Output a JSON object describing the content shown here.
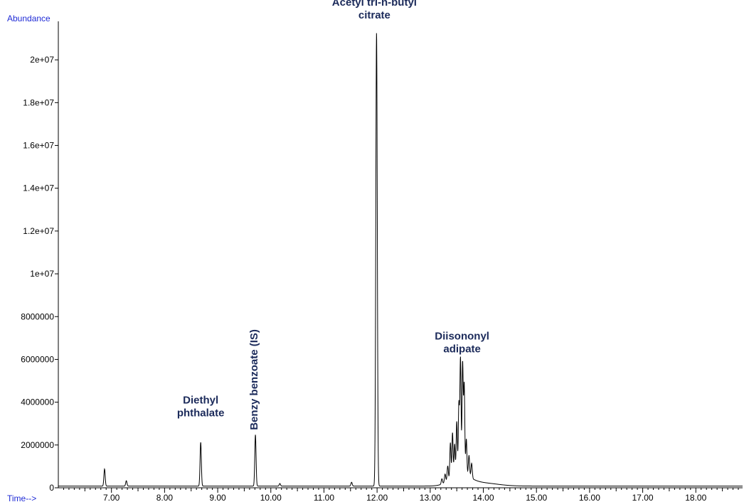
{
  "chart_data": {
    "type": "line",
    "title": "",
    "ylabel": "Abundance",
    "xlabel": "Time-->",
    "xlim": [
      6.0,
      18.88
    ],
    "ylim": [
      0,
      21800000
    ],
    "grid": false,
    "legend": "none",
    "line_color": "#000000",
    "label_color": "#1b2a5a",
    "axis_word_color": "#1f2bd6",
    "y_ticks": [
      {
        "value": 0,
        "label": "0"
      },
      {
        "value": 2000000,
        "label": "2000000"
      },
      {
        "value": 4000000,
        "label": "4000000"
      },
      {
        "value": 6000000,
        "label": "6000000"
      },
      {
        "value": 8000000,
        "label": "8000000"
      },
      {
        "value": 10000000,
        "label": "1e+07"
      },
      {
        "value": 12000000,
        "label": "1.2e+07"
      },
      {
        "value": 14000000,
        "label": "1.4e+07"
      },
      {
        "value": 16000000,
        "label": "1.6e+07"
      },
      {
        "value": 18000000,
        "label": "1.8e+07"
      },
      {
        "value": 20000000,
        "label": "2e+07"
      }
    ],
    "x_ticks": [
      {
        "value": 7,
        "label": "7.00"
      },
      {
        "value": 8,
        "label": "8.00"
      },
      {
        "value": 9,
        "label": "9.00"
      },
      {
        "value": 10,
        "label": "10.00"
      },
      {
        "value": 11,
        "label": "11.00"
      },
      {
        "value": 12,
        "label": "12.00"
      },
      {
        "value": 13,
        "label": "13.00"
      },
      {
        "value": 14,
        "label": "14.00"
      },
      {
        "value": 15,
        "label": "15.00"
      },
      {
        "value": 16,
        "label": "16.00"
      },
      {
        "value": 17,
        "label": "17.00"
      },
      {
        "value": 18,
        "label": "18.00"
      }
    ],
    "baseline": 80000,
    "peaks": [
      {
        "x": 6.87,
        "y": 800000,
        "w": 0.012
      },
      {
        "x": 7.28,
        "y": 250000,
        "w": 0.012
      },
      {
        "x": 8.68,
        "y": 2050000,
        "w": 0.012
      },
      {
        "x": 9.71,
        "y": 2400000,
        "w": 0.012
      },
      {
        "x": 10.17,
        "y": 120000,
        "w": 0.012
      },
      {
        "x": 11.52,
        "y": 180000,
        "w": 0.012
      },
      {
        "x": 11.99,
        "y": 21200000,
        "w": 0.014
      },
      {
        "x": 13.22,
        "y": 250000,
        "w": 0.012
      },
      {
        "x": 13.28,
        "y": 400000,
        "w": 0.012
      },
      {
        "x": 13.33,
        "y": 700000,
        "w": 0.012
      },
      {
        "x": 13.38,
        "y": 1700000,
        "w": 0.011
      },
      {
        "x": 13.42,
        "y": 2100000,
        "w": 0.011
      },
      {
        "x": 13.46,
        "y": 1500000,
        "w": 0.011
      },
      {
        "x": 13.5,
        "y": 2500000,
        "w": 0.011
      },
      {
        "x": 13.54,
        "y": 3300000,
        "w": 0.011
      },
      {
        "x": 13.57,
        "y": 5400000,
        "w": 0.011
      },
      {
        "x": 13.61,
        "y": 5200000,
        "w": 0.011
      },
      {
        "x": 13.64,
        "y": 4200000,
        "w": 0.011
      },
      {
        "x": 13.68,
        "y": 1700000,
        "w": 0.011
      },
      {
        "x": 13.73,
        "y": 1000000,
        "w": 0.012
      },
      {
        "x": 13.78,
        "y": 700000,
        "w": 0.012
      }
    ],
    "humps": [
      {
        "x": 13.56,
        "y": 500000,
        "w": 0.18
      },
      {
        "x": 13.95,
        "y": 150000,
        "w": 0.3
      }
    ],
    "annotations": [
      {
        "lines": [
          "Acetyl tri-n-butyl",
          "citrate"
        ],
        "x": 11.95,
        "y": 21800000,
        "rotate": false
      },
      {
        "lines": [
          "Diisononyl",
          "adipate"
        ],
        "x": 13.6,
        "y": 6200000,
        "rotate": false
      },
      {
        "lines": [
          "Diethyl",
          "phthalate"
        ],
        "x": 8.68,
        "y": 3200000,
        "rotate": false
      },
      {
        "lines": [
          "Benzy benzoate (IS)"
        ],
        "x": 9.68,
        "y": 2700000,
        "rotate": true
      }
    ]
  }
}
